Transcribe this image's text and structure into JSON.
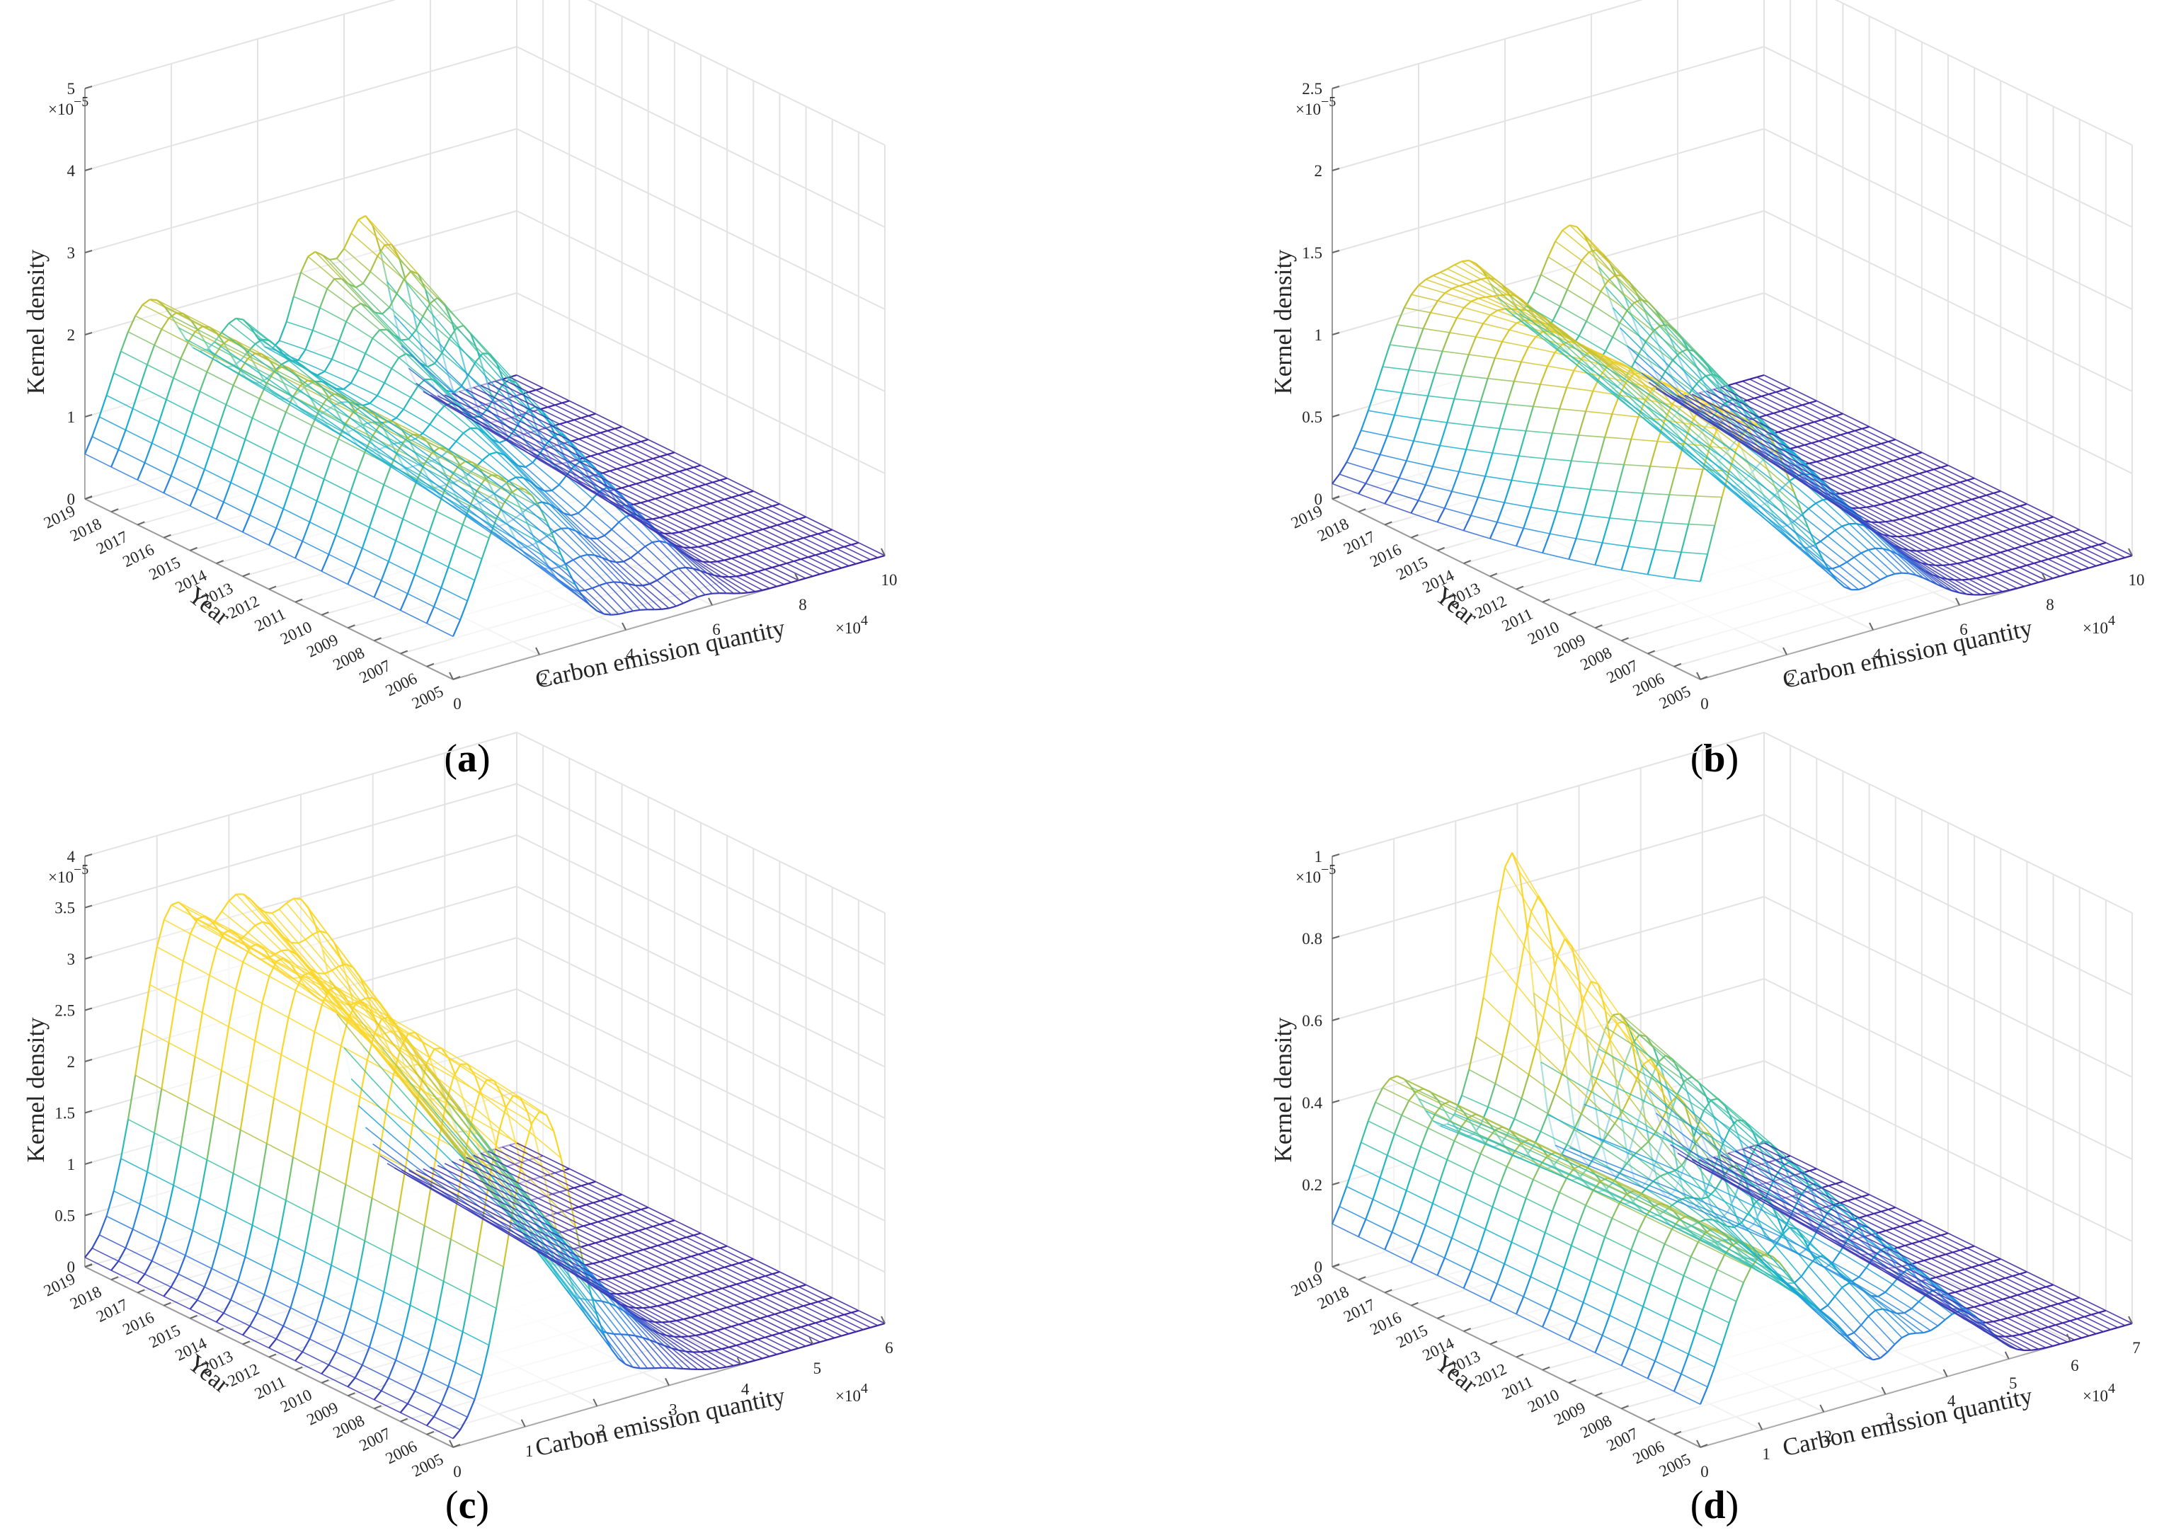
{
  "figure": {
    "panels": [
      {
        "id": "a",
        "letter": "a",
        "chart_data": {
          "type": "surface-3d-mesh",
          "xlabel": "Carbon emission quantity",
          "ylabel": "Year",
          "zlabel": "Kernel density",
          "x_multiplier": "×10",
          "x_multiplier_exp": "4",
          "z_multiplier": "×10",
          "z_multiplier_exp": "−5",
          "xlim": [
            0,
            10
          ],
          "ylim": [
            2005,
            2019
          ],
          "zlim": [
            0,
            5
          ],
          "x_ticks": [
            "0",
            "2",
            "4",
            "6",
            "8",
            "10"
          ],
          "y_ticks": [
            "2005",
            "2006",
            "2007",
            "2008",
            "2009",
            "2010",
            "2011",
            "2012",
            "2013",
            "2014",
            "2015",
            "2016",
            "2017",
            "2018",
            "2019"
          ],
          "z_ticks": [
            "0",
            "1",
            "2",
            "3",
            "4",
            "5"
          ],
          "grid": true,
          "colormap": [
            "#3e26a8",
            "#2e7ce3",
            "#15b2d2",
            "#44c39b",
            "#c9c12f",
            "#fbd72b"
          ],
          "modes": [
            {
              "center_start": 1.5,
              "center_end": 1.5,
              "width": 0.9,
              "height_start": 2.1,
              "height_end": 2.2
            },
            {
              "center_start": 3.6,
              "center_end": 3.6,
              "width": 0.6,
              "height_start": 0.05,
              "height_end": 1.5
            },
            {
              "center_start": 4.3,
              "center_end": 5.2,
              "width": 0.5,
              "height_start": 0.15,
              "height_end": 2.0
            },
            {
              "center_start": 5.8,
              "center_end": 6.5,
              "width": 0.55,
              "height_start": 0.15,
              "height_end": 2.4
            }
          ],
          "x_samples": 60
        }
      },
      {
        "id": "b",
        "letter": "b",
        "chart_data": {
          "type": "surface-3d-mesh",
          "xlabel": "Carbon emission quantity",
          "ylabel": "Year",
          "zlabel": "Kernel density",
          "x_multiplier": "×10",
          "x_multiplier_exp": "4",
          "z_multiplier": "×10",
          "z_multiplier_exp": "−5",
          "xlim": [
            0,
            10
          ],
          "ylim": [
            2005,
            2019
          ],
          "zlim": [
            0,
            2.5
          ],
          "x_ticks": [
            "0",
            "2",
            "4",
            "6",
            "8",
            "10"
          ],
          "y_ticks": [
            "2005",
            "2006",
            "2007",
            "2008",
            "2009",
            "2010",
            "2011",
            "2012",
            "2013",
            "2014",
            "2015",
            "2016",
            "2017",
            "2018",
            "2019"
          ],
          "z_ticks": [
            "0",
            "0.5",
            "1",
            "1.5",
            "2",
            "2.5"
          ],
          "grid": true,
          "colormap": [
            "#3e26a8",
            "#2e7ce3",
            "#15b2d2",
            "#44c39b",
            "#c9c12f",
            "#fbd72b"
          ],
          "modes": [
            {
              "center_start": 1.2,
              "center_end": 2.0,
              "width": 0.9,
              "height_start": 1.45,
              "height_end": 1.1
            },
            {
              "center_start": 2.6,
              "center_end": 3.4,
              "width": 0.6,
              "height_start": 0.2,
              "height_end": 0.75
            },
            {
              "center_start": 4.5,
              "center_end": 5.5,
              "width": 0.9,
              "height_start": 0.3,
              "height_end": 1.25
            }
          ],
          "x_samples": 60
        }
      },
      {
        "id": "c",
        "letter": "c",
        "chart_data": {
          "type": "surface-3d-mesh",
          "xlabel": "Carbon emission quantity",
          "ylabel": "Year",
          "zlabel": "Kernel density",
          "x_multiplier": "×10",
          "x_multiplier_exp": "4",
          "z_multiplier": "×10",
          "z_multiplier_exp": "−5",
          "xlim": [
            0,
            6
          ],
          "ylim": [
            2005,
            2019
          ],
          "zlim": [
            0,
            4
          ],
          "x_ticks": [
            "0",
            "1",
            "2",
            "3",
            "4",
            "5",
            "6"
          ],
          "y_ticks": [
            "2005",
            "2006",
            "2007",
            "2008",
            "2009",
            "2010",
            "2011",
            "2012",
            "2013",
            "2014",
            "2015",
            "2016",
            "2017",
            "2018",
            "2019"
          ],
          "z_ticks": [
            "0",
            "0.5",
            "1",
            "1.5",
            "2",
            "2.5",
            "3",
            "3.5",
            "4"
          ],
          "grid": true,
          "colormap": [
            "#3e26a8",
            "#2e7ce3",
            "#15b2d2",
            "#44c39b",
            "#c9c12f",
            "#fbd72b"
          ],
          "modes": [
            {
              "center_start": 1.2,
              "center_end": 1.2,
              "width": 0.45,
              "height_start": 3.0,
              "height_end": 3.2
            },
            {
              "center_start": 1.9,
              "center_end": 2.1,
              "width": 0.35,
              "height_start": 0.2,
              "height_end": 2.2
            },
            {
              "center_start": 2.7,
              "center_end": 3.0,
              "width": 0.5,
              "height_start": 0.2,
              "height_end": 2.9
            }
          ],
          "x_samples": 60
        }
      },
      {
        "id": "d",
        "letter": "d",
        "chart_data": {
          "type": "surface-3d-mesh",
          "xlabel": "Carbon emission quantity",
          "ylabel": "Year",
          "zlabel": "Kernel density",
          "x_multiplier": "×10",
          "x_multiplier_exp": "4",
          "z_multiplier": "×10",
          "z_multiplier_exp": "−5",
          "xlim": [
            0,
            7
          ],
          "ylim": [
            2005,
            2019
          ],
          "zlim": [
            0,
            1
          ],
          "x_ticks": [
            "0",
            "1",
            "2",
            "3",
            "4",
            "5",
            "6",
            "7"
          ],
          "y_ticks": [
            "2005",
            "2006",
            "2007",
            "2008",
            "2009",
            "2010",
            "2011",
            "2012",
            "2013",
            "2014",
            "2015",
            "2016",
            "2017",
            "2018",
            "2019"
          ],
          "z_ticks": [
            "0",
            "0.2",
            "0.4",
            "0.6",
            "0.8",
            "1"
          ],
          "grid": true,
          "colormap": [
            "#3e26a8",
            "#2e7ce3",
            "#15b2d2",
            "#44c39b",
            "#c9c12f",
            "#fbd72b"
          ],
          "modes": [
            {
              "center_start": 1.0,
              "center_end": 1.0,
              "width": 0.6,
              "height_start": 0.42,
              "height_end": 0.42
            },
            {
              "center_start": 2.2,
              "center_end": 2.6,
              "width": 0.45,
              "height_start": 0.15,
              "height_end": 0.45
            },
            {
              "center_start": 3.3,
              "center_end": 3.0,
              "width": 0.3,
              "height_start": 0.1,
              "height_end": 0.55
            },
            {
              "center_start": 4.2,
              "center_end": 4.6,
              "width": 0.45,
              "height_start": 0.15,
              "height_end": 0.42
            }
          ],
          "x_samples": 60
        }
      }
    ]
  }
}
